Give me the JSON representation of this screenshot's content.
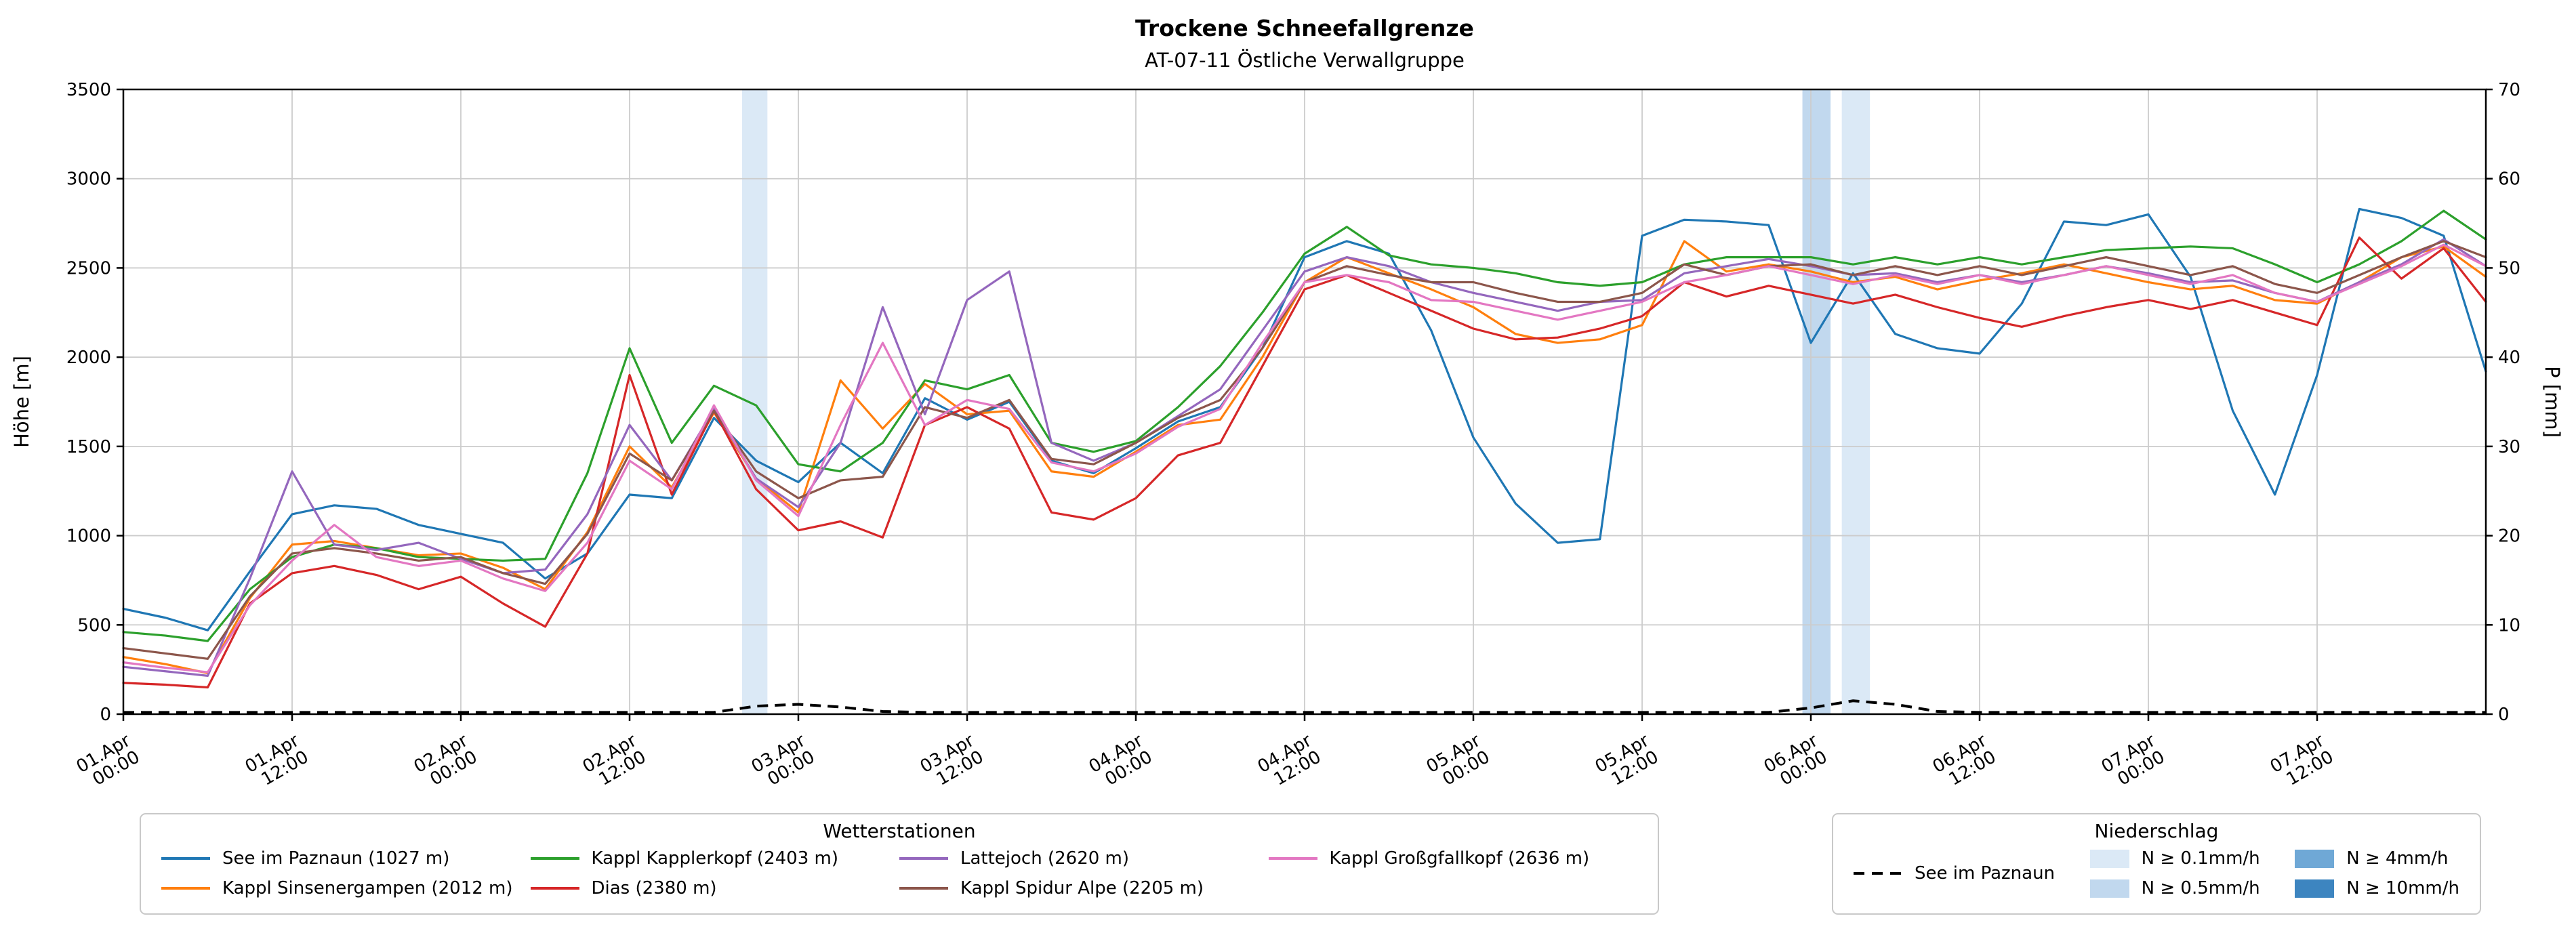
{
  "title": "Trockene Schneefallgrenze",
  "subtitle": "AT-07-11 Östliche Verwallgruppe",
  "axes": {
    "y_left_label": "Höhe [m]",
    "y_right_label": "P [mm]"
  },
  "legend_stations": {
    "title": "Wetterstationen",
    "items": [
      {
        "label": "See im Paznaun (1027 m)",
        "color": "#1f77b4"
      },
      {
        "label": "Kappl Sinsenergampen (2012 m)",
        "color": "#ff7f0e"
      },
      {
        "label": "Kappl Kapplerkopf (2403 m)",
        "color": "#2ca02c"
      },
      {
        "label": "Dias (2380 m)",
        "color": "#d62728"
      },
      {
        "label": "Lattejoch (2620 m)",
        "color": "#9467bd"
      },
      {
        "label": "Kappl Spidur Alpe (2205 m)",
        "color": "#8c564b"
      },
      {
        "label": "Kappl Großgfallkopf (2636 m)",
        "color": "#e377c2"
      }
    ]
  },
  "legend_precip": {
    "title": "Niederschlag",
    "line_label": "See im Paznaun",
    "line_color": "#000000",
    "items": [
      {
        "label": "N ≥ 0.1mm/h",
        "color": "#dbe9f6"
      },
      {
        "label": "N ≥ 0.5mm/h",
        "color": "#c1d8ee"
      },
      {
        "label": "N ≥ 4mm/h",
        "color": "#6fa8d6"
      },
      {
        "label": "N ≥ 10mm/h",
        "color": "#3d85c0"
      }
    ]
  },
  "chart_data": {
    "type": "line",
    "title": "Trockene Schneefallgrenze",
    "subtitle": "AT-07-11 Östliche Verwallgruppe",
    "x_unit": "hours since 01.Apr 00:00",
    "x_range": [
      0,
      168
    ],
    "ylim_left": [
      0,
      3500
    ],
    "ylim_right": [
      0,
      70
    ],
    "y_left_ticks": [
      0,
      500,
      1000,
      1500,
      2000,
      2500,
      3000,
      3500
    ],
    "y_right_ticks": [
      0,
      10,
      20,
      30,
      40,
      50,
      60,
      70
    ],
    "x_ticks": [
      {
        "h": 0,
        "label": "01.Apr\n00:00"
      },
      {
        "h": 12,
        "label": "01.Apr\n12:00"
      },
      {
        "h": 24,
        "label": "02.Apr\n00:00"
      },
      {
        "h": 36,
        "label": "02.Apr\n12:00"
      },
      {
        "h": 48,
        "label": "03.Apr\n00:00"
      },
      {
        "h": 60,
        "label": "03.Apr\n12:00"
      },
      {
        "h": 72,
        "label": "04.Apr\n00:00"
      },
      {
        "h": 84,
        "label": "04.Apr\n12:00"
      },
      {
        "h": 96,
        "label": "05.Apr\n00:00"
      },
      {
        "h": 108,
        "label": "05.Apr\n12:00"
      },
      {
        "h": 120,
        "label": "06.Apr\n00:00"
      },
      {
        "h": 132,
        "label": "06.Apr\n12:00"
      },
      {
        "h": 144,
        "label": "07.Apr\n00:00"
      },
      {
        "h": 156,
        "label": "07.Apr\n12:00"
      }
    ],
    "x": [
      0,
      3,
      6,
      9,
      12,
      15,
      18,
      21,
      24,
      27,
      30,
      33,
      36,
      39,
      42,
      45,
      48,
      51,
      54,
      57,
      60,
      63,
      66,
      69,
      72,
      75,
      78,
      81,
      84,
      87,
      90,
      93,
      96,
      99,
      102,
      105,
      108,
      111,
      114,
      117,
      120,
      123,
      126,
      129,
      132,
      135,
      138,
      141,
      144,
      147,
      150,
      153,
      156,
      159,
      162,
      165,
      168
    ],
    "series": [
      {
        "name": "See im Paznaun (1027 m)",
        "color": "#1f77b4",
        "values": [
          590,
          540,
          470,
          800,
          1120,
          1170,
          1150,
          1060,
          1010,
          960,
          760,
          900,
          1230,
          1210,
          1660,
          1420,
          1300,
          1520,
          1350,
          1770,
          1650,
          1750,
          1420,
          1350,
          1490,
          1640,
          1720,
          2050,
          2560,
          2650,
          2580,
          2150,
          1550,
          1180,
          960,
          980,
          2680,
          2770,
          2760,
          2740,
          2080,
          2470,
          2130,
          2050,
          2020,
          2300,
          2760,
          2740,
          2800,
          2450,
          1700,
          1230,
          1900,
          2830,
          2780,
          2680,
          1920
        ]
      },
      {
        "name": "Kappl Sinsenergampen (2012 m)",
        "color": "#ff7f0e",
        "values": [
          320,
          280,
          230,
          650,
          950,
          970,
          930,
          890,
          900,
          820,
          700,
          1020,
          1500,
          1270,
          1690,
          1320,
          1130,
          1870,
          1600,
          1850,
          1680,
          1700,
          1360,
          1330,
          1470,
          1620,
          1650,
          2000,
          2420,
          2560,
          2470,
          2380,
          2280,
          2130,
          2080,
          2100,
          2180,
          2650,
          2480,
          2520,
          2480,
          2420,
          2450,
          2380,
          2430,
          2470,
          2520,
          2470,
          2420,
          2380,
          2400,
          2320,
          2300,
          2420,
          2560,
          2620,
          2450
        ]
      },
      {
        "name": "Kappl Kapplerkopf (2403 m)",
        "color": "#2ca02c",
        "values": [
          460,
          440,
          410,
          700,
          880,
          950,
          930,
          880,
          870,
          860,
          870,
          1350,
          2050,
          1520,
          1840,
          1730,
          1400,
          1360,
          1520,
          1870,
          1820,
          1900,
          1520,
          1470,
          1530,
          1720,
          1950,
          2250,
          2580,
          2730,
          2570,
          2520,
          2500,
          2470,
          2420,
          2400,
          2420,
          2520,
          2560,
          2560,
          2560,
          2520,
          2560,
          2520,
          2560,
          2520,
          2560,
          2600,
          2610,
          2620,
          2610,
          2520,
          2420,
          2520,
          2650,
          2820,
          2660
        ]
      },
      {
        "name": "Dias (2380 m)",
        "color": "#d62728",
        "values": [
          175,
          165,
          150,
          620,
          790,
          830,
          780,
          700,
          770,
          620,
          490,
          900,
          1900,
          1230,
          1700,
          1260,
          1030,
          1080,
          990,
          1620,
          1720,
          1600,
          1130,
          1090,
          1210,
          1450,
          1520,
          1950,
          2380,
          2460,
          2360,
          2260,
          2160,
          2100,
          2110,
          2160,
          2230,
          2420,
          2340,
          2400,
          2350,
          2300,
          2350,
          2280,
          2220,
          2170,
          2230,
          2280,
          2320,
          2270,
          2320,
          2250,
          2180,
          2670,
          2440,
          2610,
          2310
        ]
      },
      {
        "name": "Lattejoch (2620 m)",
        "color": "#9467bd",
        "values": [
          265,
          240,
          215,
          760,
          1360,
          950,
          920,
          960,
          870,
          790,
          810,
          1120,
          1620,
          1310,
          1710,
          1320,
          1160,
          1520,
          2280,
          1680,
          2320,
          2480,
          1520,
          1420,
          1520,
          1670,
          1820,
          2150,
          2480,
          2560,
          2510,
          2420,
          2360,
          2310,
          2260,
          2310,
          2320,
          2470,
          2510,
          2550,
          2510,
          2460,
          2470,
          2420,
          2460,
          2420,
          2460,
          2510,
          2470,
          2420,
          2430,
          2360,
          2310,
          2420,
          2520,
          2660,
          2510
        ]
      },
      {
        "name": "Kappl Spidur Alpe (2205 m)",
        "color": "#8c564b",
        "values": [
          370,
          340,
          310,
          660,
          900,
          930,
          900,
          860,
          880,
          790,
          730,
          1010,
          1460,
          1310,
          1700,
          1360,
          1210,
          1310,
          1330,
          1720,
          1660,
          1760,
          1430,
          1400,
          1520,
          1660,
          1760,
          2050,
          2420,
          2510,
          2460,
          2420,
          2420,
          2360,
          2310,
          2310,
          2360,
          2520,
          2460,
          2510,
          2520,
          2460,
          2510,
          2460,
          2510,
          2460,
          2510,
          2560,
          2510,
          2460,
          2510,
          2410,
          2360,
          2460,
          2560,
          2650,
          2560
        ]
      },
      {
        "name": "Kappl Großgfallkopf (2636 m)",
        "color": "#e377c2",
        "values": [
          290,
          260,
          235,
          610,
          860,
          1060,
          880,
          830,
          860,
          760,
          690,
          960,
          1420,
          1260,
          1730,
          1310,
          1110,
          1620,
          2080,
          1620,
          1760,
          1710,
          1410,
          1360,
          1460,
          1610,
          1710,
          2080,
          2420,
          2460,
          2420,
          2320,
          2310,
          2260,
          2210,
          2260,
          2310,
          2420,
          2460,
          2510,
          2460,
          2410,
          2460,
          2410,
          2460,
          2410,
          2460,
          2510,
          2460,
          2410,
          2460,
          2360,
          2310,
          2410,
          2510,
          2630,
          2510
        ]
      }
    ],
    "precip_line": {
      "name": "See im Paznaun",
      "color": "#000000",
      "axis": "right",
      "dash": true,
      "values": [
        0.2,
        0.2,
        0.2,
        0.2,
        0.2,
        0.2,
        0.2,
        0.2,
        0.2,
        0.2,
        0.2,
        0.2,
        0.2,
        0.2,
        0.2,
        0.9,
        1.1,
        0.8,
        0.3,
        0.2,
        0.2,
        0.2,
        0.2,
        0.2,
        0.2,
        0.2,
        0.2,
        0.2,
        0.2,
        0.2,
        0.2,
        0.2,
        0.2,
        0.2,
        0.2,
        0.2,
        0.2,
        0.2,
        0.2,
        0.2,
        0.7,
        1.5,
        1.1,
        0.3,
        0.2,
        0.2,
        0.2,
        0.2,
        0.2,
        0.2,
        0.2,
        0.2,
        0.2,
        0.2,
        0.2,
        0.2,
        0.2
      ]
    },
    "precip_bands": [
      {
        "from": 44.0,
        "to": 45.8,
        "level": "N ≥ 0.1mm/h",
        "color": "#dbe9f6"
      },
      {
        "from": 119.4,
        "to": 121.4,
        "level": "N ≥ 0.5mm/h",
        "color": "#c1d8ee"
      },
      {
        "from": 122.2,
        "to": 124.2,
        "level": "N ≥ 0.1mm/h",
        "color": "#dbe9f6"
      }
    ],
    "grid": true,
    "legend_position": "bottom"
  }
}
